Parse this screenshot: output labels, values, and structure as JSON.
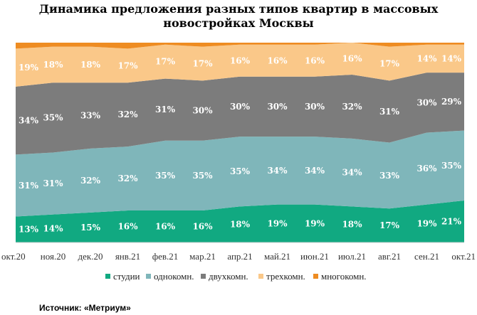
{
  "chart_data": {
    "type": "area",
    "stacked": true,
    "stacking": "percent",
    "title_lines": [
      "Динамика  предложения разных типов  квартир в массовых",
      "новостройках  Москвы"
    ],
    "categories": [
      "окт.20",
      "ноя.20",
      "дек.20",
      "янв.21",
      "фев.21",
      "мар.21",
      "апр.21",
      "май.21",
      "июн.21",
      "июл.21",
      "авг.21",
      "сен.21",
      "окт.21"
    ],
    "series": [
      {
        "name": "студии",
        "color": "#11a981",
        "values": [
          13,
          14,
          15,
          16,
          16,
          16,
          18,
          19,
          19,
          18,
          17,
          19,
          21
        ],
        "labels": [
          "13%",
          "14%",
          "15%",
          "16%",
          "16%",
          "16%",
          "18%",
          "19%",
          "19%",
          "18%",
          "17%",
          "19%",
          "21%"
        ]
      },
      {
        "name": "однокомн.",
        "color": "#7fb6ba",
        "values": [
          31,
          31,
          32,
          32,
          35,
          35,
          35,
          34,
          34,
          34,
          33,
          36,
          35
        ],
        "labels": [
          "31%",
          "31%",
          "32%",
          "32%",
          "35%",
          "35%",
          "35%",
          "34%",
          "34%",
          "34%",
          "33%",
          "36%",
          "35%"
        ]
      },
      {
        "name": "двухкомн.",
        "color": "#7c7c7c",
        "values": [
          34,
          35,
          33,
          32,
          31,
          30,
          30,
          30,
          30,
          32,
          31,
          30,
          29
        ],
        "labels": [
          "34%",
          "35%",
          "33%",
          "32%",
          "31%",
          "30%",
          "30%",
          "30%",
          "30%",
          "32%",
          "31%",
          "30%",
          "29%"
        ]
      },
      {
        "name": "трехкомн.",
        "color": "#fac889",
        "values": [
          19,
          18,
          18,
          17,
          17,
          17,
          16,
          16,
          16,
          16,
          17,
          14,
          14
        ],
        "labels": [
          "19%",
          "18%",
          "18%",
          "17%",
          "17%",
          "17%",
          "16%",
          "16%",
          "16%",
          "16%",
          "17%",
          "14%",
          "14%"
        ]
      },
      {
        "name": "многокомн.",
        "color": "#ee8c22",
        "values": [
          3,
          2,
          2,
          3,
          1,
          2,
          1,
          1,
          1,
          0,
          2,
          1,
          1
        ],
        "labels": [
          "",
          "",
          "",
          "",
          "",
          "",
          "",
          "",
          "",
          "",
          "",
          "",
          ""
        ]
      }
    ],
    "ylim": [
      0,
      100
    ],
    "grid": false,
    "legend_position": "bottom"
  },
  "source": "Источник: «Метриум»"
}
